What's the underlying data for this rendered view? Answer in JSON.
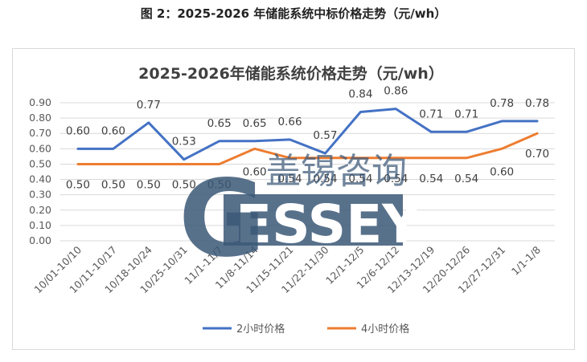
{
  "caption": "图 2：2025-2026 年储能系统中标价格走势（元/wh）",
  "chart_data": {
    "type": "line",
    "title": "2025-2026年储能系统价格走势（元/wh）",
    "xlabel": "",
    "ylabel": "",
    "ylim": [
      0,
      0.9
    ],
    "yticks": [
      "0.00",
      "0.10",
      "0.20",
      "0.30",
      "0.40",
      "0.50",
      "0.60",
      "0.70",
      "0.80",
      "0.90"
    ],
    "grid": true,
    "legend_position": "bottom",
    "categories": [
      "10/01-10/10",
      "10/11-10/17",
      "10/18-10/24",
      "10/25-10/31",
      "11/1-11/7",
      "11/8-11/14",
      "11/15-11/21",
      "11/22-11/30",
      "12/1-12/5",
      "12/6-12/12",
      "12/13-12/19",
      "12/20-12/26",
      "12/27-12/31",
      "1/1-1/8"
    ],
    "series": [
      {
        "name": "2小时价格",
        "color": "#4472c4",
        "values": [
          0.6,
          0.6,
          0.77,
          0.53,
          0.65,
          0.65,
          0.66,
          0.57,
          0.84,
          0.86,
          0.71,
          0.71,
          0.78,
          0.78
        ],
        "labels": [
          "0.60",
          "0.60",
          "0.77",
          "0.53",
          "0.65",
          "0.65",
          "0.66",
          "0.57",
          "0.84",
          "0.86",
          "0.71",
          "0.71",
          "0.78",
          "0.78"
        ]
      },
      {
        "name": "4小时价格",
        "color": "#ed7d31",
        "values": [
          0.5,
          0.5,
          0.5,
          0.5,
          0.5,
          0.6,
          0.54,
          0.54,
          0.54,
          0.54,
          0.54,
          0.54,
          0.6,
          0.7
        ],
        "labels": [
          "0.50",
          "0.50",
          "0.50",
          "0.50",
          "0.50",
          "0.60",
          "0.54",
          "0.54",
          "0.54",
          "0.54",
          "0.54",
          "0.54",
          "0.60",
          "0.70"
        ]
      }
    ]
  },
  "watermark": {
    "cn_text": "盖锡咨询",
    "en_text": "ESSEY",
    "logo_letter": "G",
    "color": "#3b5877"
  }
}
